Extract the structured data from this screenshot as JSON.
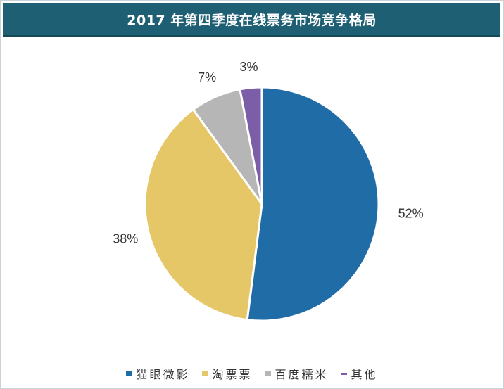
{
  "chart_data": {
    "type": "pie",
    "title": "2017 年第四季度在线票务市场竞争格局",
    "categories": [
      "猫眼微影",
      "淘票票",
      "百度糯米",
      "其他"
    ],
    "values": [
      52,
      38,
      7,
      3
    ],
    "labels": [
      "52%",
      "38%",
      "7%",
      "3%"
    ],
    "colors": [
      "#1f6ca6",
      "#e5c767",
      "#b6b6b6",
      "#7b5ea7"
    ],
    "legend_position": "bottom"
  }
}
